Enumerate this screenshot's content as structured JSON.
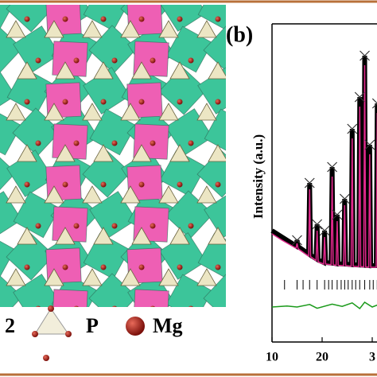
{
  "legend_a": [
    "2",
    "P",
    "Mg"
  ],
  "chart_data": {
    "type": "line",
    "panel_label": "(b)",
    "ylabel": "Intensity (a.u.)",
    "x": [
      10,
      12,
      14.8,
      15,
      15.2,
      17.3,
      17.5,
      17.7,
      18.8,
      19,
      19.2,
      20.3,
      20.5,
      20.7,
      21.8,
      22,
      22.2,
      22.8,
      23,
      23.2,
      24.3,
      24.5,
      24.7,
      25.8,
      26,
      26.2,
      27.3,
      27.5,
      27.7,
      28.3,
      28.5,
      28.7,
      29.3,
      29.5,
      29.7,
      30.8,
      31
    ],
    "series": [
      {
        "color": "#000000",
        "values": [
          35,
          33,
          30.2,
          32,
          30,
          27.7,
          50,
          27.3,
          26.2,
          37,
          25.8,
          25,
          35,
          25,
          24.8,
          55,
          24.8,
          24.6,
          40,
          24.6,
          24.5,
          45,
          24.5,
          24.3,
          67,
          24.3,
          24.2,
          77,
          24.2,
          24.1,
          90,
          24.1,
          24,
          62,
          24,
          24,
          75
        ]
      },
      {
        "color": "#e0288c",
        "values": [
          34,
          32,
          29.5,
          31,
          29.3,
          27,
          48,
          26.8,
          25.6,
          35,
          25.2,
          24.5,
          33,
          24.5,
          24.3,
          52,
          24.3,
          24.1,
          38,
          24.1,
          24,
          43,
          24,
          23.8,
          64,
          23.8,
          23.7,
          74,
          23.7,
          23.6,
          87,
          23.6,
          23.5,
          59,
          23.5,
          23.5,
          72
        ]
      }
    ],
    "bragg": [
      12.5,
      15,
      16.2,
      17.5,
      19,
      20.5,
      21.3,
      22,
      23,
      23.8,
      24.5,
      25.2,
      26,
      26.7,
      27.5,
      28.5,
      29.5,
      30.2,
      31
    ],
    "bragg_level": 18,
    "difference": {
      "color": "#1a9a1a",
      "x": [
        10,
        13,
        15,
        17.5,
        19,
        22,
        24,
        26,
        27.5,
        28.5,
        30,
        31
      ],
      "values": [
        11,
        11.3,
        11,
        11.8,
        10.6,
        11.9,
        11.2,
        12.3,
        10.5,
        12.5,
        11,
        11.6
      ]
    },
    "xlim": [
      10,
      31
    ],
    "ylim": [
      0,
      100
    ],
    "xticks": [
      10,
      20,
      {
        "value": 30,
        "label": "3"
      }
    ]
  }
}
